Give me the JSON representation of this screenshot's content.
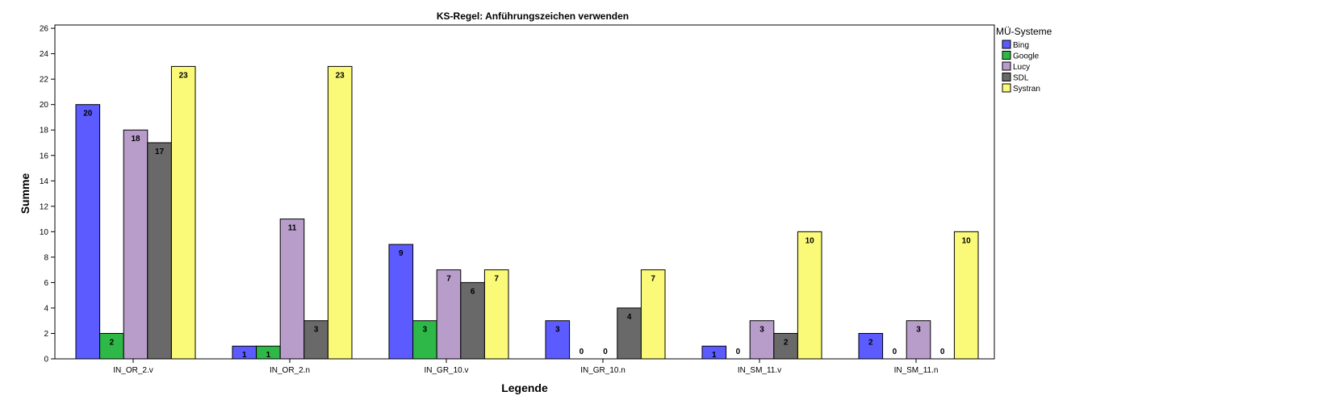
{
  "chart_data": {
    "type": "bar",
    "title": "KS-Regel: Anführungszeichen verwenden",
    "xlabel": "Legende",
    "ylabel": "Summe",
    "ylim": [
      0,
      26
    ],
    "yticks": [
      0,
      2,
      4,
      6,
      8,
      10,
      12,
      14,
      16,
      18,
      20,
      22,
      24,
      26
    ],
    "grid": false,
    "legend_title": "MÜ-Systeme",
    "legend_position": "right",
    "categories": [
      "IN_OR_2.v",
      "IN_OR_2.n",
      "IN_GR_10.v",
      "IN_GR_10.n",
      "IN_SM_11.v",
      "IN_SM_11.n"
    ],
    "series": [
      {
        "name": "Bing",
        "color": "#5b5bff",
        "values": [
          20,
          1,
          9,
          3,
          1,
          2
        ]
      },
      {
        "name": "Google",
        "color": "#2eb847",
        "values": [
          2,
          1,
          3,
          0,
          0,
          0
        ]
      },
      {
        "name": "Lucy",
        "color": "#b89dca",
        "values": [
          18,
          11,
          7,
          0,
          3,
          3
        ]
      },
      {
        "name": "SDL",
        "color": "#696969",
        "values": [
          17,
          3,
          6,
          4,
          2,
          0
        ]
      },
      {
        "name": "Systran",
        "color": "#fafa78",
        "values": [
          23,
          23,
          7,
          7,
          10,
          10
        ]
      }
    ]
  }
}
